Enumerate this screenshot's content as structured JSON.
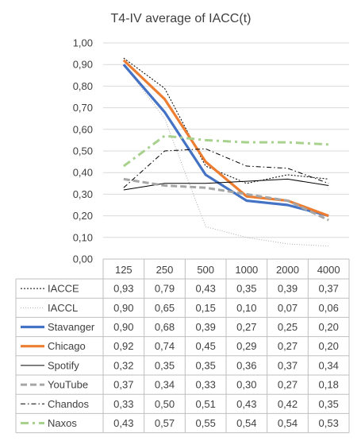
{
  "chart_data": {
    "type": "line",
    "title": "T4-IV average of IACC(t)",
    "categories": [
      "125",
      "250",
      "500",
      "1000",
      "2000",
      "4000"
    ],
    "ylim": [
      0,
      1
    ],
    "yticks": [
      "0,00",
      "0,10",
      "0,20",
      "0,30",
      "0,40",
      "0,50",
      "0,60",
      "0,70",
      "0,80",
      "0,90",
      "1,00"
    ],
    "grid": true,
    "legend": "data-table",
    "series": [
      {
        "name": "IACCE",
        "values": [
          0.93,
          0.79,
          0.43,
          0.35,
          0.39,
          0.37
        ],
        "labels": [
          "0,93",
          "0,79",
          "0,43",
          "0,35",
          "0,39",
          "0,37"
        ],
        "color": "#000000",
        "style": "dotted"
      },
      {
        "name": "IACCL",
        "values": [
          0.9,
          0.65,
          0.15,
          0.1,
          0.07,
          0.06
        ],
        "labels": [
          "0,90",
          "0,65",
          "0,15",
          "0,10",
          "0,07",
          "0,06"
        ],
        "color": "#a6a6a6",
        "style": "fine-dotted"
      },
      {
        "name": "Stavanger",
        "values": [
          0.9,
          0.68,
          0.39,
          0.27,
          0.25,
          0.2
        ],
        "labels": [
          "0,90",
          "0,68",
          "0,39",
          "0,27",
          "0,25",
          "0,20"
        ],
        "color": "#4472c4",
        "style": "solid-thick"
      },
      {
        "name": "Chicago",
        "values": [
          0.92,
          0.74,
          0.45,
          0.29,
          0.27,
          0.2
        ],
        "labels": [
          "0,92",
          "0,74",
          "0,45",
          "0,29",
          "0,27",
          "0,20"
        ],
        "color": "#ed7d31",
        "style": "solid-thick"
      },
      {
        "name": "Spotify",
        "values": [
          0.32,
          0.35,
          0.35,
          0.36,
          0.37,
          0.34
        ],
        "labels": [
          "0,32",
          "0,35",
          "0,35",
          "0,36",
          "0,37",
          "0,34"
        ],
        "color": "#000000",
        "style": "solid-thin"
      },
      {
        "name": "YouTube",
        "values": [
          0.37,
          0.34,
          0.33,
          0.3,
          0.27,
          0.18
        ],
        "labels": [
          "0,37",
          "0,34",
          "0,33",
          "0,30",
          "0,27",
          "0,18"
        ],
        "color": "#a6a6a6",
        "style": "dashed-thick"
      },
      {
        "name": "Chandos",
        "values": [
          0.33,
          0.5,
          0.51,
          0.43,
          0.42,
          0.35
        ],
        "labels": [
          "0,33",
          "0,50",
          "0,51",
          "0,43",
          "0,42",
          "0,35"
        ],
        "color": "#000000",
        "style": "dash-dot"
      },
      {
        "name": "Naxos",
        "values": [
          0.43,
          0.57,
          0.55,
          0.54,
          0.54,
          0.53
        ],
        "labels": [
          "0,43",
          "0,57",
          "0,55",
          "0,54",
          "0,54",
          "0,53"
        ],
        "color": "#a9d18e",
        "style": "dash-dot-thick"
      }
    ]
  }
}
